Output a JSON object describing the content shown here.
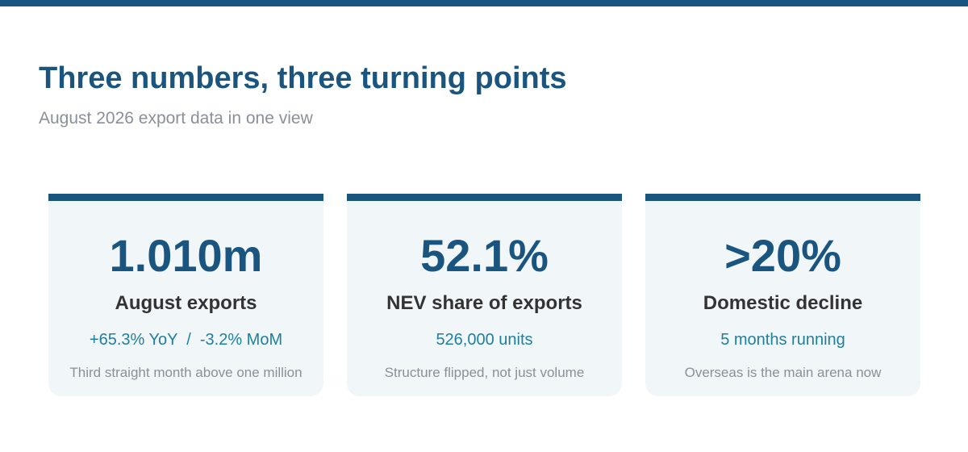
{
  "header": {
    "title": "Three numbers, three turning points",
    "subtitle": "August 2026 export data in one view"
  },
  "cards": [
    {
      "value": "1.010m",
      "label": "August exports",
      "detail": "+65.3% YoY  /  -3.2% MoM",
      "note": "Third straight month above one million"
    },
    {
      "value": "52.1%",
      "label": "NEV share of exports",
      "detail": "526,000 units",
      "note": "Structure flipped, not just volume"
    },
    {
      "value": ">20%",
      "label": "Domestic decline",
      "detail": "5 months running",
      "note": "Overseas is the main arena now"
    }
  ]
}
